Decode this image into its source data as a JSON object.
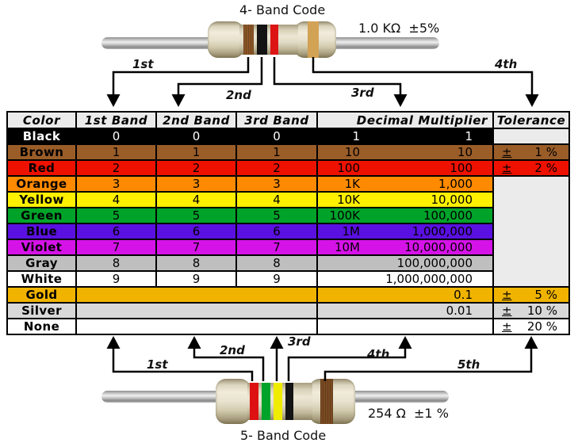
{
  "top_resistor": {
    "title": "4- Band Code",
    "value_label": "1.0 KΩ  ±5%",
    "bands": [
      {
        "name": "brown",
        "color": "#8A5526"
      },
      {
        "name": "black",
        "color": "#141414"
      },
      {
        "name": "red",
        "color": "#DD1414"
      },
      {
        "name": "gold",
        "color": "#D2A255"
      }
    ],
    "arrow_labels": [
      "1st",
      "2nd",
      "3rd",
      "4th"
    ]
  },
  "bottom_resistor": {
    "title": "5- Band Code",
    "value_label": "254 Ω  ±1 %",
    "bands": [
      {
        "name": "red",
        "color": "#DD1111"
      },
      {
        "name": "green",
        "color": "#00A32A"
      },
      {
        "name": "yellow",
        "color": "#F0EC00"
      },
      {
        "name": "black",
        "color": "#141414"
      },
      {
        "name": "brown",
        "color": "#7A4A22"
      }
    ],
    "arrow_labels": [
      "1st",
      "2nd",
      "3rd",
      "4th",
      "5th"
    ]
  },
  "table": {
    "headers": [
      "Color",
      "1st Band",
      "2nd Band",
      "3rd Band",
      "Decimal Multiplier",
      "Tolerance"
    ],
    "header_bg": "#EBEBEB",
    "empty_bg": "#EBEBEB",
    "pm_symbol": "±",
    "rows": [
      {
        "name": "Black",
        "bg": "#000000",
        "fg": "#FFFFFF",
        "digits": [
          "0",
          "0",
          "0"
        ],
        "mult_prefix": "1",
        "mult_value": "1",
        "tol_value": "",
        "tol_bg": "#EBEBEB"
      },
      {
        "name": "Brown",
        "bg": "#9A5D28",
        "digits": [
          "1",
          "1",
          "1"
        ],
        "mult_prefix": "10",
        "mult_value": "10",
        "tol_value": "1 %"
      },
      {
        "name": "Red",
        "bg": "#EE1100",
        "digits": [
          "2",
          "2",
          "2"
        ],
        "mult_prefix": "100",
        "mult_value": "100",
        "tol_value": "2 %"
      },
      {
        "name": "Orange",
        "bg": "#FF8A00",
        "digits": [
          "3",
          "3",
          "3"
        ],
        "mult_prefix": "1K",
        "mult_value": "1,000",
        "tol_value": null
      },
      {
        "name": "Yellow",
        "bg": "#FFF000",
        "digits": [
          "4",
          "4",
          "4"
        ],
        "mult_prefix": "10K",
        "mult_value": "10,000",
        "tol_value": null
      },
      {
        "name": "Green",
        "bg": "#00A32A",
        "digits": [
          "5",
          "5",
          "5"
        ],
        "mult_prefix": "100K",
        "mult_value": "100,000",
        "tol_value": null
      },
      {
        "name": "Blue",
        "bg": "#5A10E0",
        "digits": [
          "6",
          "6",
          "6"
        ],
        "mult_prefix": "1M",
        "mult_value": "1,000,000",
        "tol_value": null
      },
      {
        "name": "Violet",
        "bg": "#D513E8",
        "digits": [
          "7",
          "7",
          "7"
        ],
        "mult_prefix": "10M",
        "mult_value": "10,000,000",
        "tol_value": null
      },
      {
        "name": "Gray",
        "bg": "#BFBFBF",
        "digits": [
          "8",
          "8",
          "8"
        ],
        "mult_prefix": "",
        "mult_value": "100,000,000",
        "tol_value": null
      },
      {
        "name": "White",
        "bg": "#FFFFFF",
        "digits": [
          "9",
          "9",
          "9"
        ],
        "mult_prefix": "",
        "mult_value": "1,000,000,000",
        "tol_value": null
      },
      {
        "name": "Gold",
        "bg": "#F0B400",
        "digits": null,
        "mult_prefix": "",
        "mult_value": "0.1",
        "tol_value": "5 %"
      },
      {
        "name": "Silver",
        "bg": "#D8D8D8",
        "digits": null,
        "mult_prefix": "",
        "mult_value": "0.01",
        "tol_value": "10 %"
      },
      {
        "name": "None",
        "bg": "#FFFFFF",
        "digits": null,
        "mult_prefix": "",
        "mult_value": "",
        "tol_value": "20 %"
      }
    ]
  }
}
